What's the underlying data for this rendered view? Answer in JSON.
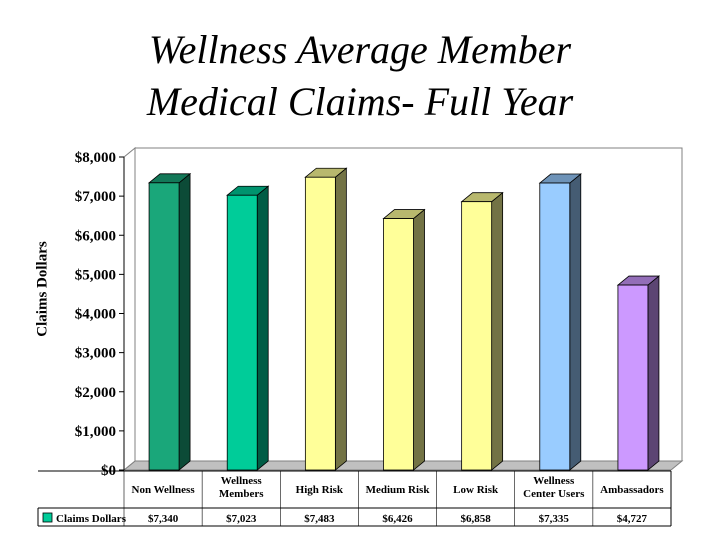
{
  "title_line1": "Wellness Average Member",
  "title_line2": "Medical Claims- Full Year",
  "chart_data": {
    "type": "bar",
    "ylabel": "Claims Dollars",
    "ylim": [
      0,
      8000
    ],
    "yticks": [
      "$0",
      "$1,000",
      "$2,000",
      "$3,000",
      "$4,000",
      "$5,000",
      "$6,000",
      "$7,000",
      "$8,000"
    ],
    "categories": [
      [
        "Non Wellness"
      ],
      [
        "Wellness",
        "Members"
      ],
      [
        "High Risk"
      ],
      [
        "Medium Risk"
      ],
      [
        "Low Risk"
      ],
      [
        "Wellness",
        "Center Users"
      ],
      [
        "Ambassadors"
      ]
    ],
    "series": [
      {
        "name": "Claims Dollars",
        "values": [
          7340,
          7023,
          7483,
          6426,
          6858,
          7335,
          4727
        ],
        "value_labels": [
          "$7,340",
          "$7,023",
          "$7,483",
          "$6,426",
          "$6,858",
          "$7,335",
          "$4,727"
        ]
      }
    ],
    "bar_colors": [
      "#1aa77a",
      "#00cc99",
      "#ffff99",
      "#ffff99",
      "#ffff99",
      "#99ccff",
      "#cc99ff"
    ],
    "legend_color": "#00cc99",
    "grid": false,
    "data_table": true
  }
}
